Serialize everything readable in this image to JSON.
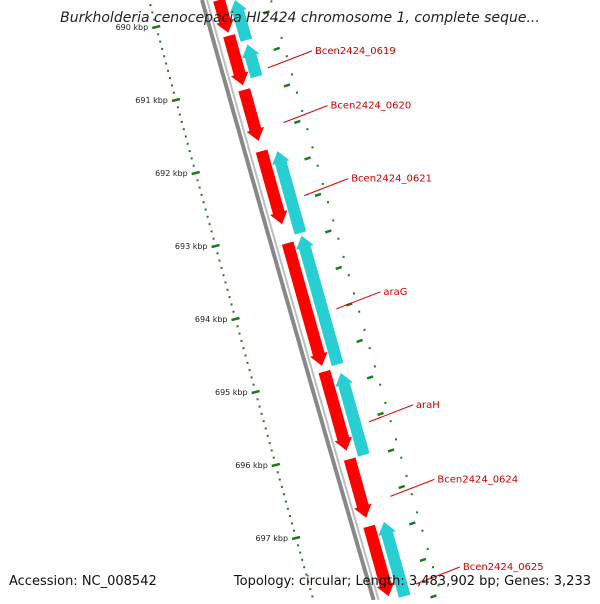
{
  "title": "Burkholderia cenocepacia HI2424 chromosome 1, complete seque...",
  "footer": {
    "accession": "Accession: NC_008542",
    "summary": "Topology: circular; Length: 3,483,902 bp; Genes: 3,233"
  },
  "colors": {
    "backbone": "#888888",
    "forward_gene": "#ff0000",
    "reverse_gene": "#27cfd3",
    "tick": "#1e7a1e",
    "label": "#cc0000",
    "leader": "#dd0000"
  },
  "ruler": {
    "unit": "kbp",
    "ticks": [
      {
        "kbp": 690,
        "label": "690 kbp"
      },
      {
        "kbp": 691,
        "label": "691 kbp"
      },
      {
        "kbp": 692,
        "label": "692 kbp"
      },
      {
        "kbp": 693,
        "label": "693 kbp"
      },
      {
        "kbp": 694,
        "label": "694 kbp"
      },
      {
        "kbp": 695,
        "label": "695 kbp"
      },
      {
        "kbp": 696,
        "label": "696 kbp"
      },
      {
        "kbp": 697,
        "label": "697 kbp"
      }
    ]
  },
  "genes": [
    {
      "label": "",
      "strand": "forward",
      "start_kbp": 689.6,
      "end_kbp": 690.08
    },
    {
      "label": "",
      "strand": "reverse",
      "start_kbp": 689.6,
      "end_kbp": 690.18
    },
    {
      "label": "Bcen2424_0619",
      "strand": "forward",
      "start_kbp": 690.12,
      "end_kbp": 690.8
    },
    {
      "label": "Bcen2424_0619",
      "strand": "reverse",
      "start_kbp": 690.24,
      "end_kbp": 690.68
    },
    {
      "label": "Bcen2424_0620",
      "strand": "forward",
      "start_kbp": 690.86,
      "end_kbp": 691.56
    },
    {
      "label": "Bcen2424_0621",
      "strand": "forward",
      "start_kbp": 691.7,
      "end_kbp": 692.7
    },
    {
      "label": "Bcen2424_0621",
      "strand": "reverse",
      "start_kbp": 691.7,
      "end_kbp": 692.82
    },
    {
      "label": "araG",
      "strand": "forward",
      "start_kbp": 692.96,
      "end_kbp": 694.64
    },
    {
      "label": "araG",
      "strand": "reverse",
      "start_kbp": 692.86,
      "end_kbp": 694.62
    },
    {
      "label": "araH",
      "strand": "forward",
      "start_kbp": 694.72,
      "end_kbp": 695.8
    },
    {
      "label": "araH",
      "strand": "reverse",
      "start_kbp": 694.74,
      "end_kbp": 695.86
    },
    {
      "label": "Bcen2424_0624",
      "strand": "forward",
      "start_kbp": 695.92,
      "end_kbp": 696.72
    },
    {
      "label": "Bcen2424_0625",
      "strand": "forward",
      "start_kbp": 696.84,
      "end_kbp": 698.2
    },
    {
      "label": "Bcen2424_0625",
      "strand": "reverse",
      "start_kbp": 696.78,
      "end_kbp": 698.2
    }
  ],
  "gene_labels": [
    {
      "text": "Bcen2424_0619",
      "kbp": 690.45
    },
    {
      "text": "Bcen2424_0620",
      "kbp": 691.2
    },
    {
      "text": "Bcen2424_0621",
      "kbp": 692.2
    },
    {
      "text": "araG",
      "kbp": 693.75
    },
    {
      "text": "araH",
      "kbp": 695.3
    },
    {
      "text": "Bcen2424_0624",
      "kbp": 696.32
    },
    {
      "text": "Bcen2424_0625",
      "kbp": 697.52
    }
  ]
}
